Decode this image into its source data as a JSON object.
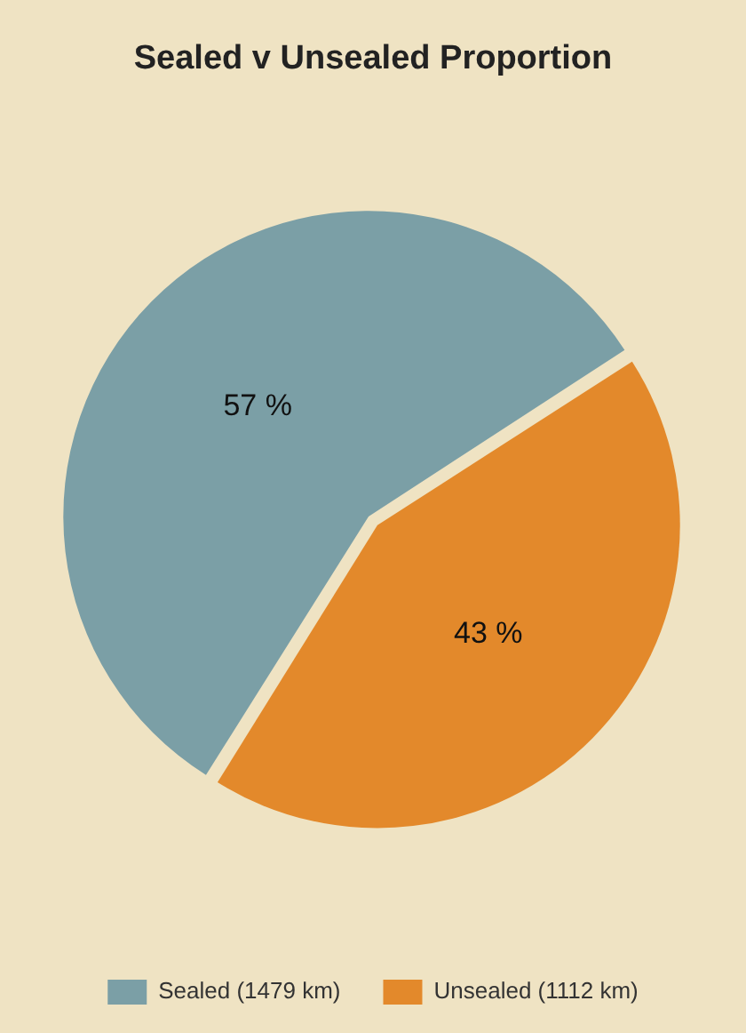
{
  "chart_data": {
    "type": "pie",
    "title": "Sealed v Unsealed Proportion",
    "categories": [
      "Sealed (1479 km)",
      "Unsealed (1112 km)"
    ],
    "values": [
      57,
      43
    ],
    "value_labels": [
      "57 %",
      "43 %"
    ],
    "colors": [
      "#7b9fa6",
      "#e3892b"
    ],
    "legend": "bottom"
  }
}
